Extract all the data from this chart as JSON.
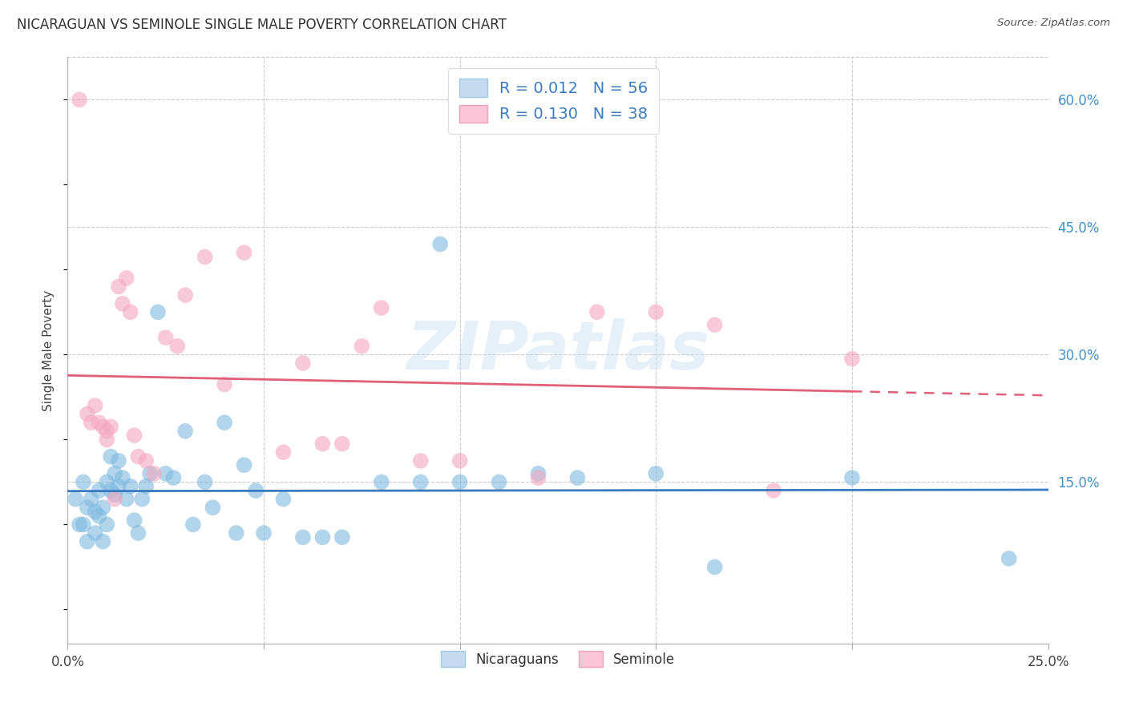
{
  "title": "NICARAGUAN VS SEMINOLE SINGLE MALE POVERTY CORRELATION CHART",
  "source": "Source: ZipAtlas.com",
  "ylabel": "Single Male Poverty",
  "x_min": 0.0,
  "x_max": 0.25,
  "y_min": -0.04,
  "y_max": 0.65,
  "y_ticks_right": [
    0.15,
    0.3,
    0.45,
    0.6
  ],
  "y_tick_labels_right": [
    "15.0%",
    "30.0%",
    "45.0%",
    "60.0%"
  ],
  "watermark": "ZIPatlas",
  "blue_color": "#7fb9e0",
  "blue_edge": "#5a9dc8",
  "pink_color": "#f4a8c0",
  "pink_edge": "#e07898",
  "line_blue": "#3a7abf",
  "line_pink": "#e0607a",
  "nicaraguan_x": [
    0.002,
    0.003,
    0.004,
    0.004,
    0.005,
    0.005,
    0.006,
    0.007,
    0.007,
    0.008,
    0.008,
    0.009,
    0.009,
    0.01,
    0.01,
    0.011,
    0.011,
    0.012,
    0.012,
    0.013,
    0.013,
    0.014,
    0.015,
    0.016,
    0.017,
    0.018,
    0.019,
    0.02,
    0.021,
    0.023,
    0.025,
    0.027,
    0.03,
    0.032,
    0.035,
    0.037,
    0.04,
    0.043,
    0.045,
    0.048,
    0.05,
    0.055,
    0.06,
    0.065,
    0.07,
    0.08,
    0.09,
    0.095,
    0.1,
    0.11,
    0.12,
    0.13,
    0.15,
    0.165,
    0.2,
    0.24
  ],
  "nicaraguan_y": [
    0.13,
    0.1,
    0.1,
    0.15,
    0.12,
    0.08,
    0.13,
    0.115,
    0.09,
    0.14,
    0.11,
    0.12,
    0.08,
    0.15,
    0.1,
    0.14,
    0.18,
    0.135,
    0.16,
    0.145,
    0.175,
    0.155,
    0.13,
    0.145,
    0.105,
    0.09,
    0.13,
    0.145,
    0.16,
    0.35,
    0.16,
    0.155,
    0.21,
    0.1,
    0.15,
    0.12,
    0.22,
    0.09,
    0.17,
    0.14,
    0.09,
    0.13,
    0.085,
    0.085,
    0.085,
    0.15,
    0.15,
    0.43,
    0.15,
    0.15,
    0.16,
    0.155,
    0.16,
    0.05,
    0.155,
    0.06
  ],
  "seminole_x": [
    0.003,
    0.005,
    0.006,
    0.007,
    0.008,
    0.009,
    0.01,
    0.01,
    0.011,
    0.012,
    0.013,
    0.014,
    0.015,
    0.016,
    0.017,
    0.018,
    0.02,
    0.022,
    0.025,
    0.028,
    0.03,
    0.035,
    0.04,
    0.045,
    0.055,
    0.06,
    0.065,
    0.07,
    0.075,
    0.08,
    0.09,
    0.1,
    0.12,
    0.135,
    0.15,
    0.165,
    0.18,
    0.2
  ],
  "seminole_y": [
    0.6,
    0.23,
    0.22,
    0.24,
    0.22,
    0.215,
    0.21,
    0.2,
    0.215,
    0.13,
    0.38,
    0.36,
    0.39,
    0.35,
    0.205,
    0.18,
    0.175,
    0.16,
    0.32,
    0.31,
    0.37,
    0.415,
    0.265,
    0.42,
    0.185,
    0.29,
    0.195,
    0.195,
    0.31,
    0.355,
    0.175,
    0.175,
    0.155,
    0.35,
    0.35,
    0.335,
    0.14,
    0.295
  ]
}
